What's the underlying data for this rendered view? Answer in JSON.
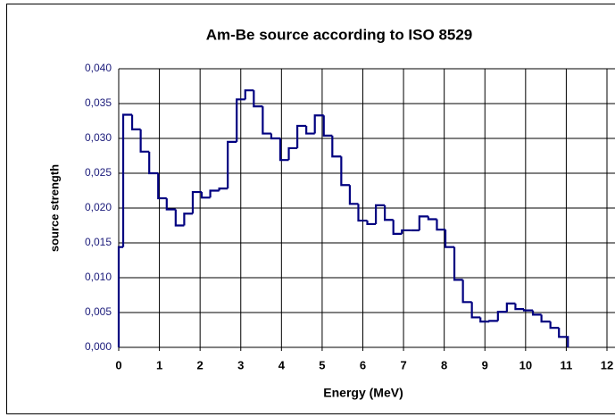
{
  "chart_data": {
    "type": "histogram",
    "title": "Am-Be source according to ISO 8529",
    "xlabel": "Energy (MeV)",
    "ylabel": "source strength",
    "color": "#000080",
    "bins": [
      0,
      0.11,
      0.33,
      0.54,
      0.75,
      0.97,
      1.18,
      1.4,
      1.61,
      1.82,
      2.04,
      2.25,
      2.47,
      2.68,
      2.9,
      3.11,
      3.32,
      3.54,
      3.75,
      3.97,
      4.18,
      4.39,
      4.61,
      4.82,
      5.04,
      5.25,
      5.47,
      5.68,
      5.89,
      6.11,
      6.32,
      6.54,
      6.75,
      6.96,
      7.18,
      7.39,
      7.61,
      7.82,
      8.03,
      8.25,
      8.46,
      8.68,
      8.89,
      9.11,
      9.32,
      9.54,
      9.75,
      9.96,
      10.18,
      10.39,
      10.61,
      10.82,
      11.04
    ],
    "values": [
      0.0144,
      0.0334,
      0.0313,
      0.0281,
      0.025,
      0.0214,
      0.0198,
      0.0175,
      0.0192,
      0.0223,
      0.0215,
      0.0225,
      0.0228,
      0.0295,
      0.0356,
      0.0369,
      0.0346,
      0.0307,
      0.03,
      0.0269,
      0.0286,
      0.0318,
      0.0307,
      0.0333,
      0.0304,
      0.0274,
      0.0233,
      0.0206,
      0.0182,
      0.0177,
      0.0204,
      0.0183,
      0.0163,
      0.0168,
      0.0168,
      0.0188,
      0.0184,
      0.0169,
      0.0144,
      0.0097,
      0.0065,
      0.0043,
      0.0037,
      0.0038,
      0.0051,
      0.0063,
      0.0055,
      0.0053,
      0.0047,
      0.0037,
      0.0028,
      0.0015
    ],
    "xlim": [
      0,
      12
    ],
    "xticks": [
      0,
      1,
      2,
      3,
      4,
      5,
      6,
      7,
      8,
      9,
      10,
      11,
      12
    ],
    "ylim": [
      0,
      0.04
    ],
    "yticks": [
      {
        "value": 0,
        "label": "0,000"
      },
      {
        "value": 0.005,
        "label": "0,005"
      },
      {
        "value": 0.01,
        "label": "0,010"
      },
      {
        "value": 0.015,
        "label": "0,015"
      },
      {
        "value": 0.02,
        "label": "0,020"
      },
      {
        "value": 0.025,
        "label": "0,025"
      },
      {
        "value": 0.03,
        "label": "0,030"
      },
      {
        "value": 0.035,
        "label": "0,035"
      },
      {
        "value": 0.04,
        "label": "0,040"
      }
    ],
    "grid": true
  }
}
